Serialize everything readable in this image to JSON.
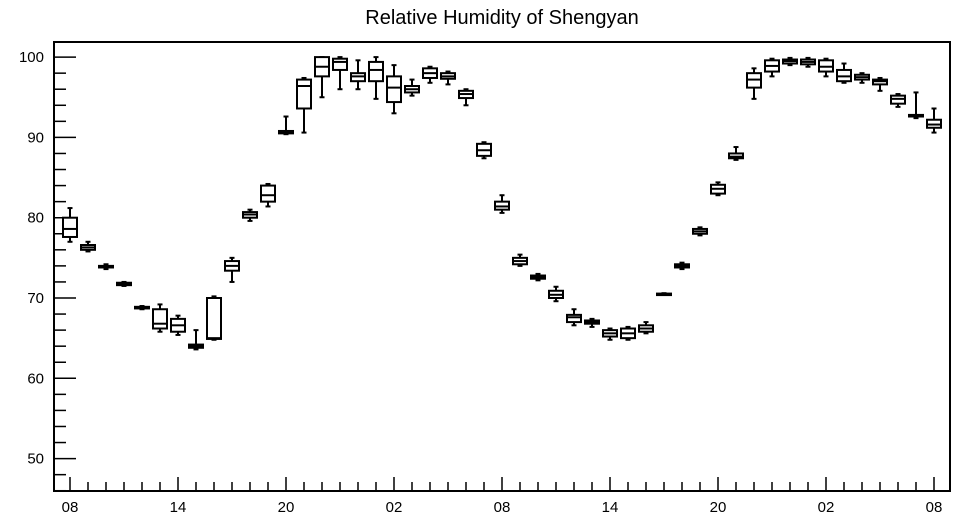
{
  "chart_data": {
    "type": "boxplot",
    "title": "Relative Humidity of Shengyan",
    "xlabel": "",
    "ylabel": "",
    "ylim": [
      46,
      102
    ],
    "y_ticks": [
      50,
      60,
      70,
      80,
      90,
      100
    ],
    "x_range_hours": [
      0,
      48
    ],
    "x_ticks": [
      {
        "hour": 0,
        "label": "08"
      },
      {
        "hour": 6,
        "label": "14"
      },
      {
        "hour": 12,
        "label": "20"
      },
      {
        "hour": 18,
        "label": "02"
      },
      {
        "hour": 24,
        "label": "08"
      },
      {
        "hour": 30,
        "label": "14"
      },
      {
        "hour": 36,
        "label": "20"
      },
      {
        "hour": 42,
        "label": "02"
      },
      {
        "hour": 48,
        "label": "08"
      }
    ],
    "boxes": [
      {
        "hour": 0,
        "min": 77.0,
        "q1": 77.6,
        "median": 78.6,
        "q3": 80.0,
        "max": 81.2
      },
      {
        "hour": 1,
        "min": 75.8,
        "q1": 76.0,
        "median": 76.3,
        "q3": 76.6,
        "max": 77.0
      },
      {
        "hour": 2,
        "min": 73.6,
        "q1": 73.8,
        "median": 73.9,
        "q3": 74.0,
        "max": 74.2
      },
      {
        "hour": 3,
        "min": 71.5,
        "q1": 71.6,
        "median": 71.7,
        "q3": 71.9,
        "max": 72.0
      },
      {
        "hour": 4,
        "min": 68.6,
        "q1": 68.7,
        "median": 68.8,
        "q3": 68.9,
        "max": 69.0
      },
      {
        "hour": 5,
        "min": 65.8,
        "q1": 66.2,
        "median": 66.8,
        "q3": 68.6,
        "max": 69.2
      },
      {
        "hour": 6,
        "min": 65.4,
        "q1": 65.8,
        "median": 66.6,
        "q3": 67.4,
        "max": 67.8
      },
      {
        "hour": 7,
        "min": 63.6,
        "q1": 63.8,
        "median": 64.0,
        "q3": 64.2,
        "max": 66.0
      },
      {
        "hour": 8,
        "min": 64.8,
        "q1": 64.9,
        "median": 65.0,
        "q3": 70.0,
        "max": 70.2
      },
      {
        "hour": 9,
        "min": 72.0,
        "q1": 73.4,
        "median": 74.0,
        "q3": 74.6,
        "max": 75.0
      },
      {
        "hour": 10,
        "min": 79.6,
        "q1": 80.0,
        "median": 80.4,
        "q3": 80.7,
        "max": 81.0
      },
      {
        "hour": 11,
        "min": 81.4,
        "q1": 82.0,
        "median": 82.8,
        "q3": 84.0,
        "max": 84.2
      },
      {
        "hour": 12,
        "min": 90.4,
        "q1": 90.5,
        "median": 90.6,
        "q3": 90.8,
        "max": 92.6
      },
      {
        "hour": 13,
        "min": 90.6,
        "q1": 93.6,
        "median": 96.4,
        "q3": 97.2,
        "max": 97.4
      },
      {
        "hour": 14,
        "min": 95.0,
        "q1": 97.6,
        "median": 98.8,
        "q3": 100.0,
        "max": 100.0
      },
      {
        "hour": 15,
        "min": 96.0,
        "q1": 98.4,
        "median": 99.4,
        "q3": 99.8,
        "max": 100.0
      },
      {
        "hour": 16,
        "min": 96.0,
        "q1": 97.0,
        "median": 97.6,
        "q3": 98.0,
        "max": 99.6
      },
      {
        "hour": 17,
        "min": 94.8,
        "q1": 97.0,
        "median": 98.4,
        "q3": 99.4,
        "max": 100.0
      },
      {
        "hour": 18,
        "min": 93.0,
        "q1": 94.4,
        "median": 96.2,
        "q3": 97.6,
        "max": 99.0
      },
      {
        "hour": 19,
        "min": 95.2,
        "q1": 95.6,
        "median": 96.0,
        "q3": 96.4,
        "max": 97.2
      },
      {
        "hour": 20,
        "min": 96.8,
        "q1": 97.4,
        "median": 98.0,
        "q3": 98.6,
        "max": 98.8
      },
      {
        "hour": 21,
        "min": 96.6,
        "q1": 97.3,
        "median": 97.6,
        "q3": 98.0,
        "max": 98.2
      },
      {
        "hour": 22,
        "min": 94.0,
        "q1": 94.9,
        "median": 95.4,
        "q3": 95.8,
        "max": 96.0
      },
      {
        "hour": 23,
        "min": 87.4,
        "q1": 87.7,
        "median": 88.4,
        "q3": 89.2,
        "max": 89.4
      },
      {
        "hour": 24,
        "min": 80.6,
        "q1": 81.0,
        "median": 81.4,
        "q3": 82.0,
        "max": 82.8
      },
      {
        "hour": 25,
        "min": 74.0,
        "q1": 74.2,
        "median": 74.6,
        "q3": 75.0,
        "max": 75.4
      },
      {
        "hour": 26,
        "min": 72.2,
        "q1": 72.4,
        "median": 72.6,
        "q3": 72.8,
        "max": 73.0
      },
      {
        "hour": 27,
        "min": 69.6,
        "q1": 70.0,
        "median": 70.4,
        "q3": 70.9,
        "max": 71.4
      },
      {
        "hour": 28,
        "min": 66.6,
        "q1": 67.0,
        "median": 67.6,
        "q3": 67.9,
        "max": 68.6
      },
      {
        "hour": 29,
        "min": 66.4,
        "q1": 66.8,
        "median": 67.0,
        "q3": 67.2,
        "max": 67.4
      },
      {
        "hour": 30,
        "min": 64.8,
        "q1": 65.2,
        "median": 65.6,
        "q3": 66.0,
        "max": 66.2
      },
      {
        "hour": 31,
        "min": 64.8,
        "q1": 65.0,
        "median": 65.6,
        "q3": 66.2,
        "max": 66.4
      },
      {
        "hour": 32,
        "min": 65.6,
        "q1": 65.8,
        "median": 66.2,
        "q3": 66.6,
        "max": 67.0
      },
      {
        "hour": 33,
        "min": 70.4,
        "q1": 70.45,
        "median": 70.5,
        "q3": 70.55,
        "max": 70.6
      },
      {
        "hour": 34,
        "min": 73.6,
        "q1": 73.8,
        "median": 74.0,
        "q3": 74.2,
        "max": 74.4
      },
      {
        "hour": 35,
        "min": 77.8,
        "q1": 78.0,
        "median": 78.3,
        "q3": 78.6,
        "max": 78.8
      },
      {
        "hour": 36,
        "min": 82.8,
        "q1": 83.0,
        "median": 83.6,
        "q3": 84.1,
        "max": 84.4
      },
      {
        "hour": 37,
        "min": 87.2,
        "q1": 87.4,
        "median": 87.6,
        "q3": 88.0,
        "max": 88.8
      },
      {
        "hour": 38,
        "min": 94.8,
        "q1": 96.2,
        "median": 97.2,
        "q3": 98.0,
        "max": 98.6
      },
      {
        "hour": 39,
        "min": 97.6,
        "q1": 98.2,
        "median": 98.9,
        "q3": 99.6,
        "max": 99.8
      },
      {
        "hour": 40,
        "min": 99.0,
        "q1": 99.2,
        "median": 99.5,
        "q3": 99.7,
        "max": 99.9
      },
      {
        "hour": 41,
        "min": 98.8,
        "q1": 99.1,
        "median": 99.4,
        "q3": 99.7,
        "max": 99.9
      },
      {
        "hour": 42,
        "min": 97.6,
        "q1": 98.2,
        "median": 98.8,
        "q3": 99.6,
        "max": 99.8
      },
      {
        "hour": 43,
        "min": 96.8,
        "q1": 97.0,
        "median": 97.6,
        "q3": 98.4,
        "max": 99.2
      },
      {
        "hour": 44,
        "min": 96.8,
        "q1": 97.2,
        "median": 97.5,
        "q3": 97.8,
        "max": 98.0
      },
      {
        "hour": 45,
        "min": 95.8,
        "q1": 96.6,
        "median": 97.0,
        "q3": 97.2,
        "max": 97.4
      },
      {
        "hour": 46,
        "min": 93.8,
        "q1": 94.2,
        "median": 94.8,
        "q3": 95.2,
        "max": 95.4
      },
      {
        "hour": 47,
        "min": 92.4,
        "q1": 92.6,
        "median": 92.7,
        "q3": 92.8,
        "max": 95.6
      },
      {
        "hour": 48,
        "min": 90.6,
        "q1": 91.2,
        "median": 91.6,
        "q3": 92.2,
        "max": 93.6
      }
    ]
  }
}
